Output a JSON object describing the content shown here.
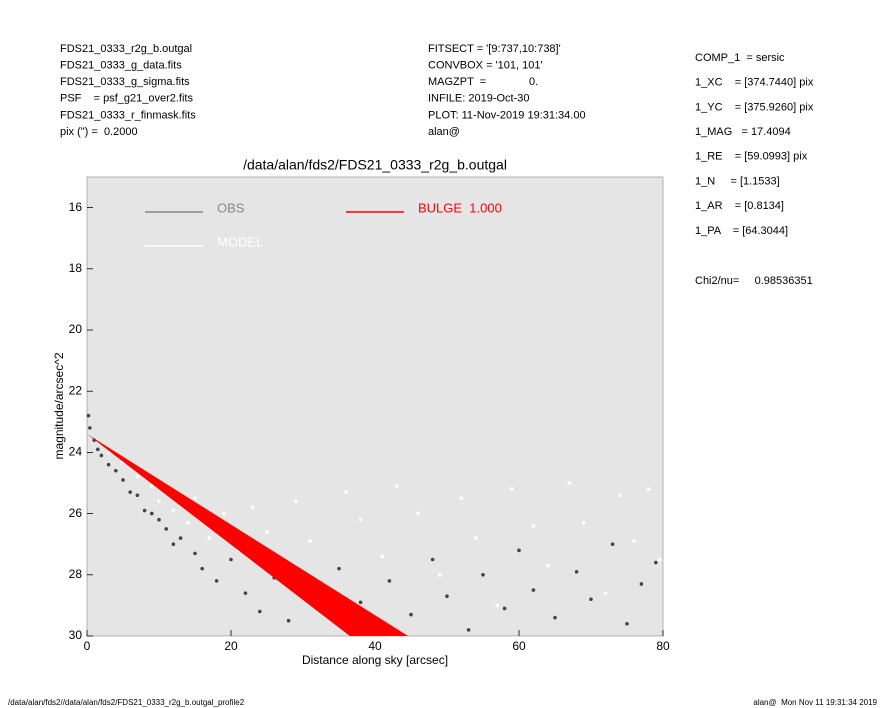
{
  "header": {
    "files": [
      "FDS21_0333_r2g_b.outgal",
      "FDS21_0333_g_data.fits",
      "FDS21_0333_g_sigma.fits",
      "PSF    = psf_g21_over2.fits",
      "FDS21_0333_r_finmask.fits",
      "pix (\") =  0.2000"
    ],
    "settings": [
      "FITSECT = '[9:737,10:738]'",
      "CONVBOX = '101, 101'",
      "MAGZPT  =              0.",
      "INFILE: 2019-Oct-30",
      "PLOT: 11-Nov-2019 19:31:34.00",
      "alan@"
    ],
    "parameters": [
      "COMP_1  = sersic",
      "1_XC    = [374.7440] pix",
      "1_YC    = [375.9260] pix",
      "1_MAG   = 17.4094",
      "1_RE    = [59.0993] pix",
      "1_N     = [1.1533]",
      "1_AR    = [0.8134]",
      "1_PA    = [64.3044]"
    ],
    "chi2": "Chi2/nu=     0.98536351"
  },
  "footer": {
    "left": "/data/alan/fds2//data/alan/fds2/FDS21_0333_r2g_b.outgal_profile2",
    "right": "alan@  Mon Nov 11 19:31:34 2019"
  },
  "chart_data": {
    "type": "scatter",
    "title": "/data/alan/fds2/FDS21_0333_r2g_b.outgal",
    "x_label": "Distance along sky [arcsec]",
    "y_label": "magnitude/arcsec^2",
    "xlim": [
      0,
      80
    ],
    "xticks": [
      0,
      20,
      40,
      60,
      80
    ],
    "ylim": [
      15,
      30
    ],
    "yticks": [
      16,
      18,
      20,
      22,
      24,
      26,
      28,
      30
    ],
    "y_inverted": true,
    "background": "#e5e5e5",
    "series": [
      {
        "name": "OBS",
        "color": "#444444",
        "legend_color": "#888888",
        "x": [
          0.2,
          0.4,
          1,
          1.5,
          2,
          3,
          4,
          5,
          6,
          7,
          8,
          9,
          10,
          11,
          12,
          13,
          15,
          16,
          18,
          20,
          22,
          24,
          26,
          28,
          30,
          32,
          35,
          38,
          40,
          42,
          45,
          48,
          50,
          53,
          55,
          58,
          60,
          62,
          65,
          68,
          70,
          73,
          75,
          77,
          79
        ],
        "values": [
          22.8,
          23.2,
          23.6,
          23.9,
          24.1,
          24.4,
          24.6,
          24.9,
          25.3,
          25.4,
          25.9,
          26.0,
          26.2,
          26.5,
          27.0,
          26.8,
          27.3,
          27.8,
          28.2,
          27.5,
          28.6,
          29.2,
          28.1,
          29.5,
          28.4,
          29.0,
          27.8,
          28.9,
          29.6,
          28.2,
          29.3,
          27.5,
          28.7,
          29.8,
          28.0,
          29.1,
          27.2,
          28.5,
          29.4,
          27.9,
          28.8,
          27.0,
          29.6,
          28.3,
          27.6
        ]
      },
      {
        "name": "MODEL",
        "color": "#ffffff",
        "legend_color": "#ffffff",
        "x": [
          3,
          5,
          7,
          9,
          10,
          12,
          14,
          15,
          17,
          19,
          21,
          23,
          25,
          27,
          29,
          31,
          33,
          36,
          38,
          41,
          43,
          46,
          49,
          52,
          54,
          57,
          59,
          62,
          64,
          67,
          69,
          72,
          74,
          76,
          78,
          79.5
        ],
        "values": [
          24.0,
          24.3,
          24.8,
          25.1,
          25.6,
          25.9,
          26.3,
          25.5,
          26.8,
          26.0,
          27.2,
          25.8,
          26.6,
          27.9,
          25.6,
          26.9,
          28.4,
          25.3,
          26.2,
          27.4,
          25.1,
          26.0,
          28.0,
          25.5,
          26.8,
          29.0,
          25.2,
          26.4,
          27.7,
          25.0,
          26.3,
          28.6,
          25.4,
          26.9,
          25.2,
          27.5
        ]
      },
      {
        "name": "BULGE  1.000",
        "color": "#ff0000",
        "legend_color": "#ff0000",
        "area": true,
        "x": [
          0,
          36.5,
          44.6
        ],
        "values": [
          23.4,
          30,
          30
        ]
      }
    ]
  }
}
